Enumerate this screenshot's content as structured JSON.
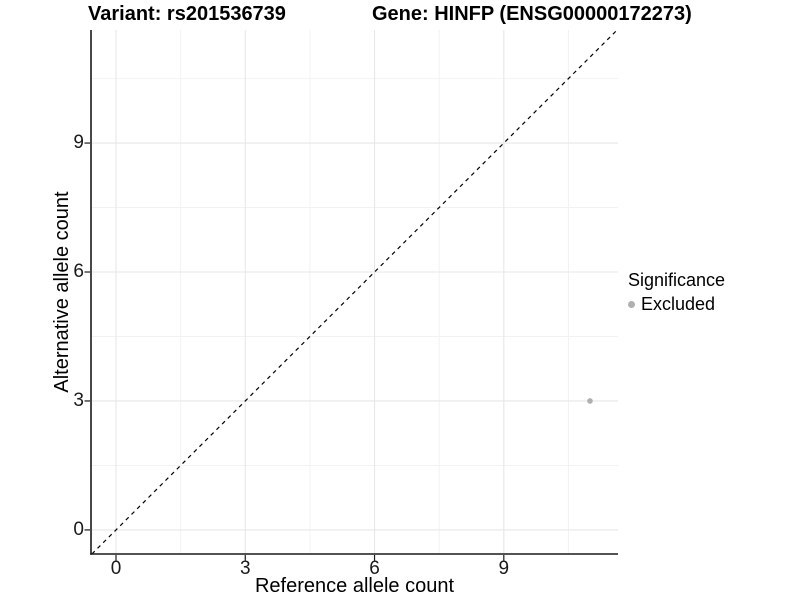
{
  "chart_data": {
    "type": "scatter",
    "title_left": "Variant: rs201536739",
    "title_right": "Gene: HINFP (ENSG00000172273)",
    "xlabel": "Reference allele count",
    "ylabel": "Alternative allele count",
    "x_ticks": [
      0,
      3,
      6,
      9
    ],
    "y_ticks": [
      0,
      3,
      6,
      9
    ],
    "x_minor_ticks": [
      1.5,
      4.5,
      7.5,
      10.5
    ],
    "y_minor_ticks": [
      1.5,
      4.5,
      7.5,
      10.5
    ],
    "xlim": [
      -0.58,
      11.65
    ],
    "ylim": [
      -0.56,
      11.63
    ],
    "grid": true,
    "legend": {
      "title": "Significance",
      "position": "right",
      "entries": [
        {
          "label": "Excluded",
          "color": "#b0b0b0"
        }
      ]
    },
    "series": [
      {
        "name": "Excluded",
        "color": "#b0b0b0",
        "points": [
          {
            "x": 11,
            "y": 3
          }
        ]
      }
    ],
    "reference_line": {
      "slope": 1,
      "intercept": 0,
      "linetype": "dashed",
      "color": "#000000"
    },
    "colors": {
      "axis_line": "#1a1a1a",
      "tick_label": "#1a1a1a",
      "major_grid": "#e7e7e7",
      "minor_grid": "#f2f2f2",
      "background": "#ffffff"
    }
  }
}
